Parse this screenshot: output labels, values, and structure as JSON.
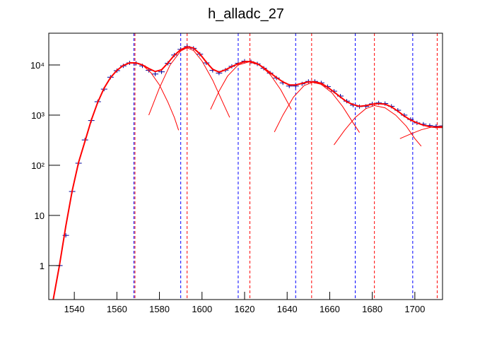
{
  "chart_data": {
    "type": "line",
    "title": "h_alladc_27",
    "log_y": true,
    "xlim": [
      1528,
      1713
    ],
    "ylim": [
      0.21,
      43000
    ],
    "xticks": [
      1540,
      1560,
      1580,
      1600,
      1620,
      1640,
      1660,
      1680,
      1700
    ],
    "yticks": [
      {
        "value": 1,
        "label": "1"
      },
      {
        "value": 10,
        "label": "10"
      },
      {
        "value": 100,
        "label": "10²"
      },
      {
        "value": 1000,
        "label": "10³"
      },
      {
        "value": 10000,
        "label": "10⁴"
      }
    ],
    "vlines": [
      {
        "color": "#0000ff",
        "x": [
          1568,
          1590,
          1617,
          1644,
          1672,
          1699
        ]
      },
      {
        "color": "#ff0000",
        "x": [
          1568.5,
          1593,
          1622.5,
          1651.5,
          1681,
          1710.5
        ]
      }
    ],
    "series": [
      {
        "style": "markers",
        "color": "#000099",
        "x": [
          1533,
          1536,
          1539,
          1542,
          1545,
          1548,
          1551,
          1554,
          1557,
          1560,
          1563,
          1566,
          1569,
          1572,
          1575,
          1578,
          1581,
          1584,
          1587,
          1590,
          1593,
          1596,
          1599,
          1602,
          1605,
          1608,
          1611,
          1614,
          1617,
          1620,
          1623,
          1626,
          1629,
          1632,
          1635,
          1638,
          1641,
          1644,
          1647,
          1650,
          1653,
          1656,
          1659,
          1662,
          1665,
          1668,
          1671,
          1674,
          1677,
          1680,
          1683,
          1686,
          1689,
          1692,
          1695,
          1698,
          1701,
          1704,
          1707,
          1710,
          1713
        ],
        "values": [
          1,
          4,
          30,
          110,
          320,
          780,
          1850,
          3300,
          5700,
          7700,
          9600,
          11000,
          10800,
          9600,
          7800,
          6600,
          7300,
          10800,
          15800,
          20500,
          23300,
          21500,
          16400,
          11000,
          7800,
          6900,
          7900,
          9400,
          10800,
          11900,
          11600,
          10500,
          8600,
          6900,
          5500,
          4400,
          3800,
          3800,
          4200,
          4700,
          4700,
          4400,
          3700,
          3000,
          2400,
          1900,
          1580,
          1480,
          1500,
          1680,
          1750,
          1700,
          1500,
          1250,
          1000,
          820,
          700,
          660,
          620,
          600,
          610
        ]
      },
      {
        "style": "line",
        "color": "#ff0000",
        "width": 2,
        "x": [
          1530,
          1533,
          1536,
          1539,
          1542,
          1545,
          1548,
          1551,
          1554,
          1557,
          1560,
          1563,
          1566,
          1569,
          1572,
          1575,
          1578,
          1581,
          1584,
          1587,
          1590,
          1593,
          1596,
          1599,
          1602,
          1605,
          1608,
          1611,
          1614,
          1617,
          1620,
          1623,
          1626,
          1629,
          1632,
          1635,
          1638,
          1641,
          1644,
          1647,
          1650,
          1653,
          1656,
          1659,
          1662,
          1665,
          1668,
          1671,
          1674,
          1677,
          1680,
          1683,
          1686,
          1689,
          1692,
          1695,
          1698,
          1701,
          1704,
          1707,
          1710,
          1713
        ],
        "values": [
          0.2,
          1,
          6.1,
          31,
          114,
          300,
          800,
          1800,
          3450,
          5600,
          7800,
          9800,
          11000,
          11000,
          10000,
          8500,
          7400,
          8000,
          11000,
          15600,
          20200,
          23100,
          21700,
          16600,
          11400,
          8200,
          7200,
          8000,
          9300,
          10600,
          11700,
          11700,
          10600,
          8800,
          7000,
          5600,
          4600,
          4000,
          4000,
          4300,
          4600,
          4600,
          4300,
          3600,
          2900,
          2300,
          1850,
          1620,
          1500,
          1550,
          1650,
          1700,
          1650,
          1460,
          1200,
          960,
          800,
          700,
          630,
          590,
          570,
          570
        ]
      },
      {
        "style": "line",
        "color": "#ff0000",
        "width": 1,
        "x": [
          1572,
          1576,
          1580,
          1584,
          1587,
          1589
        ],
        "values": [
          10000,
          7000,
          4000,
          1800,
          900,
          500
        ]
      },
      {
        "style": "line",
        "color": "#ff0000",
        "width": 1,
        "x": [
          1575,
          1580,
          1585,
          1590,
          1593,
          1596,
          1600,
          1605,
          1610,
          1613
        ],
        "values": [
          1000,
          3500,
          10000,
          19000,
          22000,
          19500,
          12000,
          5000,
          1700,
          900
        ]
      },
      {
        "style": "line",
        "color": "#ff0000",
        "width": 1,
        "x": [
          1604,
          1608,
          1612,
          1617,
          1622,
          1627,
          1632,
          1637,
          1642
        ],
        "values": [
          1300,
          3000,
          6000,
          10000,
          11500,
          10000,
          6500,
          3200,
          1300
        ]
      },
      {
        "style": "line",
        "color": "#ff0000",
        "width": 1,
        "x": [
          1634,
          1638,
          1643,
          1648,
          1652,
          1656,
          1661,
          1666,
          1671,
          1674
        ],
        "values": [
          460,
          1000,
          2300,
          3900,
          4500,
          4100,
          2800,
          1500,
          700,
          450
        ]
      },
      {
        "style": "line",
        "color": "#ff0000",
        "width": 1,
        "x": [
          1662,
          1667,
          1672,
          1677,
          1681,
          1686,
          1691,
          1696,
          1700,
          1703
        ],
        "values": [
          255,
          500,
          900,
          1350,
          1550,
          1400,
          1000,
          600,
          340,
          240
        ]
      },
      {
        "style": "line",
        "color": "#ff0000",
        "width": 1,
        "x": [
          1693,
          1698,
          1703,
          1708,
          1713
        ],
        "values": [
          340,
          420,
          510,
          580,
          600
        ]
      }
    ]
  }
}
